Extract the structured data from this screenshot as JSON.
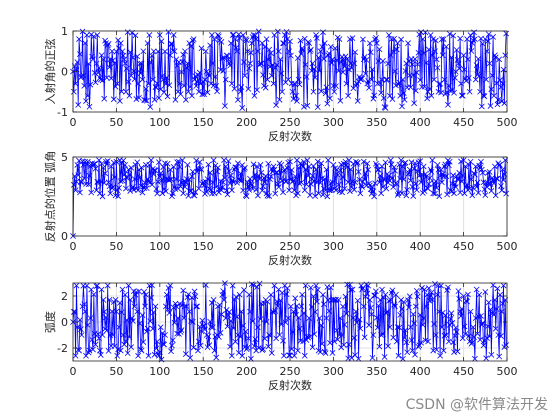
{
  "watermark": "CSDN @软件算法开发",
  "colors": {
    "series": "#0000ff",
    "grid": "#e0e0e0",
    "axes": "#262626"
  },
  "chart_data": [
    {
      "type": "line",
      "marker": "x",
      "xlabel": "反射次数",
      "ylabel": "入射角的正弦",
      "xlim": [
        0,
        500
      ],
      "ylim": [
        -1,
        1
      ],
      "xticks": [
        0,
        50,
        100,
        150,
        200,
        250,
        300,
        350,
        400,
        450,
        500
      ],
      "yticks": [
        -1,
        0,
        1
      ],
      "grid": true,
      "n_points": 500,
      "value_range": [
        -0.9,
        1.0
      ],
      "start_value": 0,
      "sample_values": [
        0.2,
        -0.5,
        0.7,
        -0.3,
        0.9,
        -0.6,
        0.4,
        0.8,
        -0.2,
        0.5,
        -0.7,
        0.3
      ]
    },
    {
      "type": "line",
      "marker": "x",
      "xlabel": "反射次数",
      "ylabel": "反射点的位置 弧角",
      "xlim": [
        0,
        500
      ],
      "ylim": [
        0,
        5
      ],
      "xticks": [
        0,
        50,
        100,
        150,
        200,
        250,
        300,
        350,
        400,
        450,
        500
      ],
      "yticks": [
        0,
        5
      ],
      "grid": true,
      "n_points": 500,
      "value_range": [
        2.5,
        4.8
      ],
      "start_value": 0,
      "sample_values": [
        4.5,
        3.0,
        4.7,
        2.9,
        4.2,
        3.4,
        4.8,
        2.7,
        4.4,
        3.1,
        4.6,
        3.6
      ]
    },
    {
      "type": "line",
      "marker": "x",
      "xlabel": "反射次数",
      "ylabel": "弧度",
      "xlim": [
        0,
        500
      ],
      "ylim": [
        -3,
        3
      ],
      "xticks": [
        0,
        50,
        100,
        150,
        200,
        250,
        300,
        350,
        400,
        450,
        500
      ],
      "yticks": [
        -2,
        0,
        2
      ],
      "grid": true,
      "n_points": 500,
      "value_range": [
        -2.9,
        3.0
      ],
      "start_value": 0,
      "sample_values": [
        2.1,
        -1.5,
        0.8,
        -2.6,
        2.8,
        -0.4,
        1.7,
        -2.2,
        0.3,
        2.5,
        -1.0,
        1.2
      ]
    }
  ]
}
